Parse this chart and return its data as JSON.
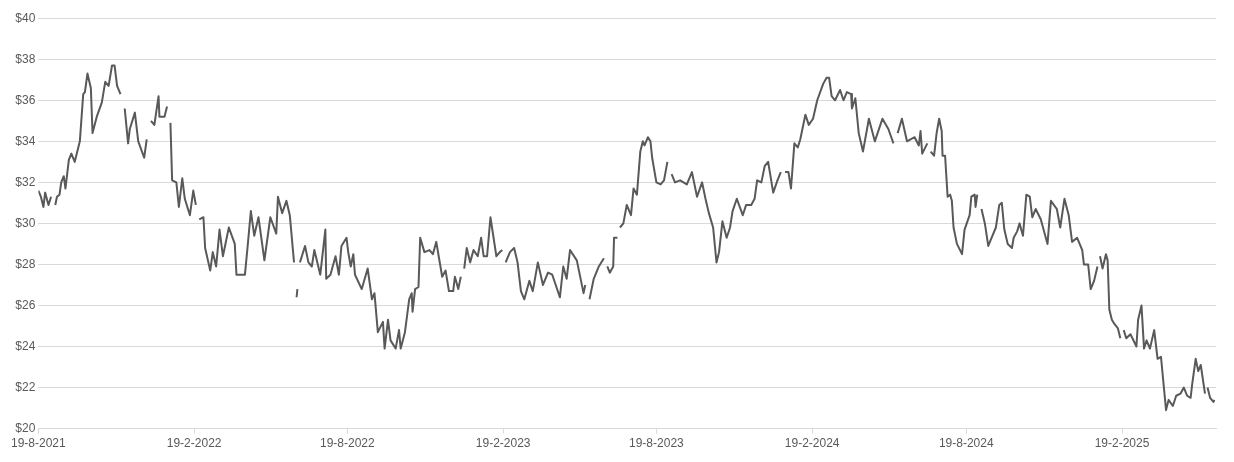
{
  "chart_data": {
    "type": "line",
    "xlim": [
      "2021-08-19",
      "2025-06-10"
    ],
    "xticks": [
      {
        "value": "2021-08-19",
        "label": "19-8-2021"
      },
      {
        "value": "2022-02-19",
        "label": "19-2-2022"
      },
      {
        "value": "2022-08-19",
        "label": "19-8-2022"
      },
      {
        "value": "2023-02-19",
        "label": "19-2-2023"
      },
      {
        "value": "2023-08-19",
        "label": "19-8-2023"
      },
      {
        "value": "2024-02-19",
        "label": "19-2-2024"
      },
      {
        "value": "2024-08-19",
        "label": "19-8-2024"
      },
      {
        "value": "2025-02-19",
        "label": "19-2-2025"
      }
    ],
    "ylim": [
      20,
      40
    ],
    "yticks": [
      {
        "value": 20,
        "label": "$20"
      },
      {
        "value": 22,
        "label": "$22"
      },
      {
        "value": 24,
        "label": "$24"
      },
      {
        "value": 26,
        "label": "$26"
      },
      {
        "value": 28,
        "label": "$28"
      },
      {
        "value": 30,
        "label": "$30"
      },
      {
        "value": 32,
        "label": "$32"
      },
      {
        "value": 34,
        "label": "$34"
      },
      {
        "value": 36,
        "label": "$36"
      },
      {
        "value": 38,
        "label": "$38"
      },
      {
        "value": 40,
        "label": "$40"
      }
    ],
    "grid": "y",
    "legend": false,
    "marker": "none",
    "line_style": "solid",
    "series": [
      {
        "color": "#595959",
        "x": [
          "2021-08-19",
          "2021-08-22",
          "2021-08-25",
          "2021-08-27",
          "2021-08-31",
          "2021-09-03",
          "2021-09-05",
          "2021-09-08",
          "2021-09-10",
          "2021-09-13",
          "2021-09-15",
          "2021-09-18",
          "2021-09-20",
          "2021-09-24",
          "2021-09-27",
          "2021-10-01",
          "2021-10-07",
          "2021-10-11",
          "2021-10-13",
          "2021-10-16",
          "2021-10-20",
          "2021-10-22",
          "2021-10-27",
          "2021-11-02",
          "2021-11-06",
          "2021-11-10",
          "2021-11-14",
          "2021-11-17",
          "2021-11-20",
          "2021-11-24",
          "2021-11-27",
          "2021-11-29",
          "2021-12-03",
          "2021-12-05",
          "2021-12-11",
          "2021-12-15",
          "2021-12-22",
          "2021-12-25",
          "2021-12-28",
          "2021-12-30",
          "2022-01-03",
          "2022-01-08",
          "2022-01-09",
          "2022-01-15",
          "2022-01-18",
          "2022-01-20",
          "2022-01-22",
          "2022-01-24",
          "2022-01-29",
          "2022-02-01",
          "2022-02-05",
          "2022-02-08",
          "2022-02-14",
          "2022-02-18",
          "2022-02-21",
          "2022-02-24",
          "2022-02-25",
          "2022-03-02",
          "2022-03-04",
          "2022-03-10",
          "2022-03-13",
          "2022-03-17",
          "2022-03-21",
          "2022-03-25",
          "2022-04-01",
          "2022-04-08",
          "2022-04-10",
          "2022-04-20",
          "2022-04-23",
          "2022-04-27",
          "2022-05-01",
          "2022-05-06",
          "2022-05-13",
          "2022-05-20",
          "2022-05-27",
          "2022-05-29",
          "2022-06-03",
          "2022-06-08",
          "2022-06-12",
          "2022-06-17",
          "2022-06-18",
          "2022-06-20",
          "2022-06-21",
          "2022-06-23",
          "2022-06-24",
          "2022-06-30",
          "2022-07-04",
          "2022-07-08",
          "2022-07-11",
          "2022-07-18",
          "2022-07-24",
          "2022-07-25",
          "2022-07-30",
          "2022-08-05",
          "2022-08-09",
          "2022-08-12",
          "2022-08-18",
          "2022-08-20",
          "2022-08-23",
          "2022-08-26",
          "2022-08-28",
          "2022-09-05",
          "2022-09-12",
          "2022-09-17",
          "2022-09-20",
          "2022-09-24",
          "2022-09-30",
          "2022-10-02",
          "2022-10-06",
          "2022-10-09",
          "2022-10-15",
          "2022-10-19",
          "2022-10-21",
          "2022-10-26",
          "2022-10-31",
          "2022-11-03",
          "2022-11-04",
          "2022-11-07",
          "2022-11-11",
          "2022-11-13",
          "2022-11-18",
          "2022-11-24",
          "2022-11-28",
          "2022-12-02",
          "2022-12-09",
          "2022-12-13",
          "2022-12-17",
          "2022-12-22",
          "2022-12-24",
          "2022-12-28",
          "2022-12-31",
          "2023-01-02",
          "2023-01-04",
          "2023-01-07",
          "2023-01-11",
          "2023-01-15",
          "2023-01-20",
          "2023-01-24",
          "2023-01-27",
          "2023-01-31",
          "2023-02-04",
          "2023-02-11",
          "2023-02-15",
          "2023-02-18",
          "2023-02-20",
          "2023-02-22",
          "2023-02-27",
          "2023-03-04",
          "2023-03-08",
          "2023-03-12",
          "2023-03-16",
          "2023-03-22",
          "2023-03-26",
          "2023-04-01",
          "2023-04-07",
          "2023-04-13",
          "2023-04-18",
          "2023-04-27",
          "2023-05-01",
          "2023-05-05",
          "2023-05-09",
          "2023-05-17",
          "2023-05-25",
          "2023-05-27",
          "2023-05-29",
          "2023-06-01",
          "2023-06-06",
          "2023-06-12",
          "2023-06-18",
          "2023-06-20",
          "2023-06-22",
          "2023-06-25",
          "2023-06-29",
          "2023-06-30",
          "2023-07-04",
          "2023-07-06",
          "2023-07-07",
          "2023-07-11",
          "2023-07-15",
          "2023-07-20",
          "2023-07-23",
          "2023-07-27",
          "2023-07-31",
          "2023-08-03",
          "2023-08-05",
          "2023-08-09",
          "2023-08-12",
          "2023-08-14",
          "2023-08-19",
          "2023-08-24",
          "2023-08-28",
          "2023-09-01",
          "2023-09-03",
          "2023-09-06",
          "2023-09-10",
          "2023-09-16",
          "2023-09-24",
          "2023-09-30",
          "2023-10-06",
          "2023-10-12",
          "2023-10-16",
          "2023-10-20",
          "2023-10-25",
          "2023-10-29",
          "2023-11-01",
          "2023-11-05",
          "2023-11-10",
          "2023-11-14",
          "2023-11-17",
          "2023-11-22",
          "2023-11-29",
          "2023-12-03",
          "2023-12-09",
          "2023-12-13",
          "2023-12-16",
          "2023-12-21",
          "2023-12-25",
          "2023-12-29",
          "2024-01-04",
          "2024-01-09",
          "2024-01-13",
          "2024-01-15",
          "2024-01-18",
          "2024-01-22",
          "2024-01-25",
          "2024-01-29",
          "2024-02-02",
          "2024-02-05",
          "2024-02-11",
          "2024-02-15",
          "2024-02-20",
          "2024-02-25",
          "2024-03-03",
          "2024-03-07",
          "2024-03-10",
          "2024-03-13",
          "2024-03-17",
          "2024-03-23",
          "2024-03-27",
          "2024-03-31",
          "2024-04-05",
          "2024-04-06",
          "2024-04-10",
          "2024-04-14",
          "2024-04-19",
          "2024-04-26",
          "2024-05-03",
          "2024-05-12",
          "2024-05-19",
          "2024-05-25",
          "2024-05-28",
          "2024-05-30",
          "2024-06-04",
          "2024-06-10",
          "2024-06-19",
          "2024-06-24",
          "2024-06-26",
          "2024-06-28",
          "2024-07-04",
          "2024-07-06",
          "2024-07-08",
          "2024-07-12",
          "2024-07-15",
          "2024-07-18",
          "2024-07-21",
          "2024-07-22",
          "2024-07-25",
          "2024-07-28",
          "2024-07-31",
          "2024-08-02",
          "2024-08-04",
          "2024-08-08",
          "2024-08-14",
          "2024-08-17",
          "2024-08-23",
          "2024-08-25",
          "2024-08-29",
          "2024-08-30",
          "2024-09-01",
          "2024-09-03",
          "2024-09-06",
          "2024-09-10",
          "2024-09-14",
          "2024-09-19",
          "2024-09-23",
          "2024-09-27",
          "2024-09-30",
          "2024-10-03",
          "2024-10-07",
          "2024-10-12",
          "2024-10-14",
          "2024-10-18",
          "2024-10-21",
          "2024-10-25",
          "2024-10-29",
          "2024-11-02",
          "2024-11-05",
          "2024-11-09",
          "2024-11-15",
          "2024-11-23",
          "2024-11-27",
          "2024-12-04",
          "2024-12-08",
          "2024-12-13",
          "2024-12-18",
          "2024-12-22",
          "2024-12-28",
          "2025-01-03",
          "2025-01-05",
          "2025-01-10",
          "2025-01-13",
          "2025-01-17",
          "2025-01-21",
          "2025-01-23",
          "2025-01-24",
          "2025-01-27",
          "2025-01-31",
          "2025-02-02",
          "2025-02-04",
          "2025-02-07",
          "2025-02-10",
          "2025-02-14",
          "2025-02-17",
          "2025-02-19",
          "2025-02-21",
          "2025-02-24",
          "2025-03-01",
          "2025-03-08",
          "2025-03-10",
          "2025-03-14",
          "2025-03-17",
          "2025-03-20",
          "2025-03-24",
          "2025-03-29",
          "2025-04-02",
          "2025-04-06",
          "2025-04-12",
          "2025-04-15",
          "2025-04-20",
          "2025-04-24",
          "2025-04-29",
          "2025-05-03",
          "2025-05-07",
          "2025-05-11",
          "2025-05-13",
          "2025-05-17",
          "2025-05-20",
          "2025-05-23",
          "2025-05-28",
          "2025-05-30",
          "2025-05-31",
          "2025-06-03",
          "2025-06-07",
          "2025-06-08"
        ],
        "values": [
          31.6,
          31.3,
          30.8,
          31.5,
          30.9,
          31.3,
          null,
          30.9,
          31.3,
          31.4,
          32.0,
          32.3,
          31.7,
          33.1,
          33.4,
          33.0,
          34.0,
          36.3,
          36.4,
          37.3,
          36.6,
          34.4,
          35.2,
          35.9,
          36.9,
          36.7,
          37.7,
          37.7,
          36.7,
          36.3,
          null,
          35.6,
          33.9,
          34.6,
          35.4,
          34.0,
          33.2,
          34.1,
          null,
          35.0,
          34.8,
          36.2,
          35.2,
          35.2,
          35.7,
          null,
          34.9,
          32.1,
          32.0,
          30.8,
          32.2,
          31.2,
          30.4,
          31.6,
          30.9,
          null,
          30.2,
          30.3,
          28.8,
          27.7,
          28.6,
          27.9,
          29.7,
          28.4,
          29.8,
          29.0,
          27.5,
          27.5,
          28.8,
          30.6,
          29.4,
          30.3,
          28.2,
          30.3,
          29.5,
          31.3,
          30.5,
          31.1,
          30.4,
          28.1,
          null,
          26.4,
          26.8,
          null,
          28.1,
          28.9,
          28.1,
          27.9,
          28.7,
          27.5,
          29.7,
          27.3,
          27.5,
          28.4,
          27.5,
          28.9,
          29.3,
          28.6,
          27.9,
          28.5,
          27.5,
          26.8,
          27.8,
          26.3,
          26.6,
          24.7,
          25.2,
          23.9,
          25.3,
          24.3,
          23.9,
          24.8,
          23.9,
          24.7,
          26.3,
          26.6,
          25.7,
          26.8,
          26.9,
          29.3,
          28.6,
          28.7,
          28.5,
          29.1,
          27.4,
          27.7,
          26.7,
          26.7,
          27.4,
          26.8,
          27.4,
          null,
          27.8,
          28.8,
          28.1,
          28.7,
          28.4,
          29.3,
          28.4,
          28.4,
          30.3,
          28.4,
          28.6,
          28.7,
          null,
          28.1,
          28.6,
          28.8,
          28.1,
          26.7,
          26.3,
          27.2,
          26.7,
          28.1,
          27.0,
          27.6,
          27.5,
          26.4,
          27.9,
          27.3,
          28.7,
          28.2,
          26.6,
          27.0,
          null,
          26.3,
          27.3,
          27.9,
          28.3,
          null,
          27.9,
          27.6,
          27.9,
          29.3,
          29.3,
          null,
          29.8,
          30.0,
          30.9,
          30.4,
          31.7,
          31.4,
          33.5,
          34.0,
          33.8,
          34.2,
          34.0,
          33.2,
          32.0,
          31.9,
          32.1,
          33.0,
          null,
          32.4,
          32.0,
          32.1,
          31.9,
          32.5,
          31.3,
          32.0,
          31.2,
          30.5,
          29.8,
          28.1,
          28.6,
          30.1,
          29.3,
          29.8,
          30.6,
          31.2,
          30.4,
          30.9,
          30.9,
          31.2,
          32.1,
          32.0,
          32.8,
          33.0,
          31.5,
          32.1,
          32.5,
          null,
          32.5,
          32.5,
          31.7,
          33.9,
          33.7,
          34.1,
          35.3,
          34.8,
          35.1,
          36.0,
          36.8,
          37.1,
          37.1,
          36.2,
          36.0,
          36.5,
          36.0,
          36.4,
          36.3,
          35.6,
          36.1,
          34.4,
          33.5,
          35.1,
          34.0,
          35.1,
          34.6,
          33.9,
          null,
          34.4,
          35.1,
          34.0,
          34.2,
          33.8,
          34.5,
          33.4,
          33.9,
          null,
          33.5,
          33.3,
          34.4,
          35.1,
          34.5,
          33.3,
          33.3,
          31.3,
          31.4,
          31.1,
          29.8,
          29.0,
          28.5,
          29.7,
          30.4,
          31.3,
          31.4,
          30.8,
          31.4,
          null,
          30.7,
          30.0,
          28.9,
          29.4,
          29.8,
          30.9,
          31.0,
          29.7,
          29.0,
          28.8,
          29.3,
          29.6,
          30.0,
          29.4,
          31.4,
          31.3,
          30.3,
          30.7,
          30.2,
          29.0,
          31.1,
          30.7,
          29.8,
          31.2,
          30.4,
          29.1,
          29.3,
          28.7,
          28.0,
          28.0,
          26.8,
          27.2,
          27.9,
          null,
          28.4,
          27.8,
          28.5,
          28.2,
          25.8,
          25.3,
          25.1,
          24.9,
          24.4,
          null,
          24.8,
          24.4,
          24.6,
          24.0,
          25.3,
          26.0,
          23.9,
          24.3,
          23.9,
          24.8,
          23.4,
          23.5,
          20.9,
          21.4,
          21.1,
          21.6,
          21.7,
          22.0,
          21.6,
          21.5,
          22.2,
          23.4,
          22.8,
          23.1,
          21.7,
          null,
          22.0,
          21.5,
          21.3,
          21.4
        ]
      }
    ]
  }
}
